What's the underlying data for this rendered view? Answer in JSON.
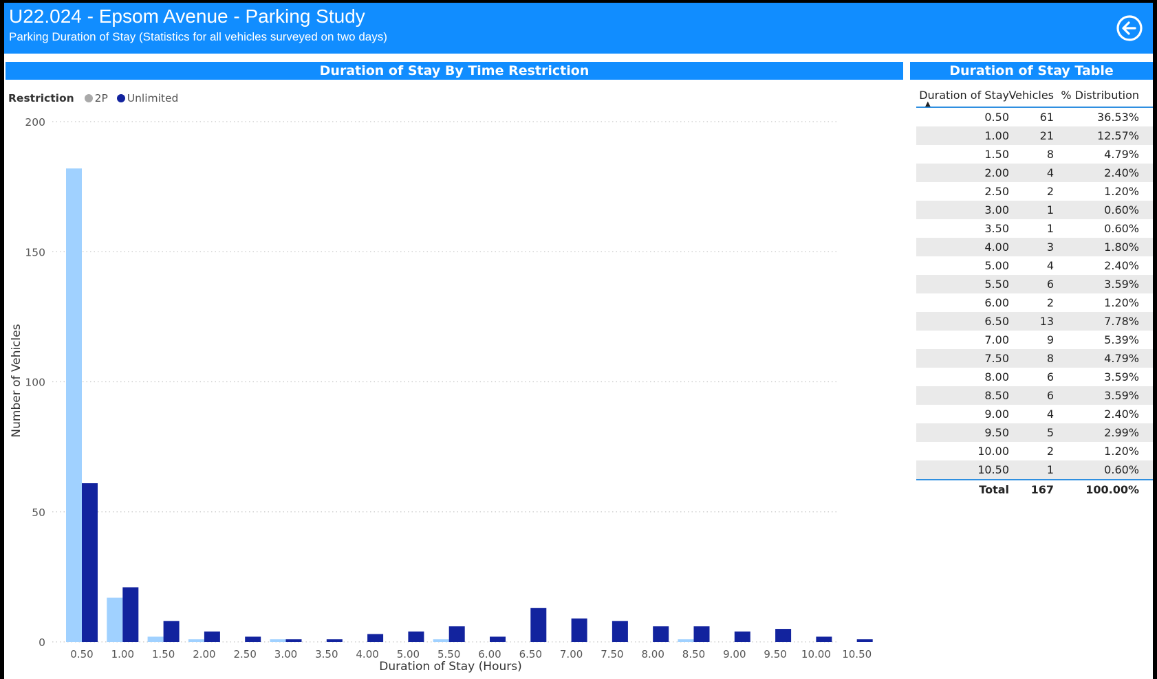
{
  "header": {
    "title": "U22.024 - Epsom Avenue - Parking Study",
    "subtitle": "Parking Duration of Stay (Statistics for all vehicles surveyed on two days)",
    "back_icon": "arrow-left-circle-icon",
    "background": "#118DFF"
  },
  "chart_panel": {
    "title": "Duration of Stay By Time Restriction"
  },
  "legend": {
    "title": "Restriction",
    "items": [
      {
        "label": "2P",
        "color": "#A9A9A9"
      },
      {
        "label": "Unlimited",
        "color": "#12239E"
      }
    ]
  },
  "chart_data": {
    "type": "bar",
    "categories": [
      "0.50",
      "1.00",
      "1.50",
      "2.00",
      "2.50",
      "3.00",
      "3.50",
      "4.00",
      "5.00",
      "5.50",
      "6.00",
      "6.50",
      "7.00",
      "7.50",
      "8.00",
      "8.50",
      "9.00",
      "9.50",
      "10.00",
      "10.50"
    ],
    "series": [
      {
        "name": "2P",
        "color": "#A0D1FF",
        "values": [
          182,
          17,
          2,
          1,
          0,
          1,
          0,
          0,
          0,
          1,
          0,
          0,
          0,
          0,
          0,
          1,
          0,
          0,
          0,
          0
        ]
      },
      {
        "name": "Unlimited",
        "color": "#12239E",
        "values": [
          61,
          21,
          8,
          4,
          2,
          1,
          1,
          3,
          4,
          6,
          2,
          13,
          9,
          8,
          6,
          6,
          4,
          5,
          2,
          1
        ]
      }
    ],
    "xlabel": "Duration of Stay (Hours)",
    "ylabel": "Number of Vehicles",
    "yticks": [
      0,
      50,
      100,
      150,
      200
    ],
    "ylim": [
      0,
      200
    ],
    "grid": true,
    "legend_position": "top-left"
  },
  "table": {
    "title": "Duration of Stay Table",
    "columns": [
      "Duration of Stay",
      "Vehicles",
      "% Distribution"
    ],
    "rows": [
      [
        "0.50",
        "61",
        "36.53%"
      ],
      [
        "1.00",
        "21",
        "12.57%"
      ],
      [
        "1.50",
        "8",
        "4.79%"
      ],
      [
        "2.00",
        "4",
        "2.40%"
      ],
      [
        "2.50",
        "2",
        "1.20%"
      ],
      [
        "3.00",
        "1",
        "0.60%"
      ],
      [
        "3.50",
        "1",
        "0.60%"
      ],
      [
        "4.00",
        "3",
        "1.80%"
      ],
      [
        "5.00",
        "4",
        "2.40%"
      ],
      [
        "5.50",
        "6",
        "3.59%"
      ],
      [
        "6.00",
        "2",
        "1.20%"
      ],
      [
        "6.50",
        "13",
        "7.78%"
      ],
      [
        "7.00",
        "9",
        "5.39%"
      ],
      [
        "7.50",
        "8",
        "4.79%"
      ],
      [
        "8.00",
        "6",
        "3.59%"
      ],
      [
        "8.50",
        "6",
        "3.59%"
      ],
      [
        "9.00",
        "4",
        "2.40%"
      ],
      [
        "9.50",
        "5",
        "2.99%"
      ],
      [
        "10.00",
        "2",
        "1.20%"
      ],
      [
        "10.50",
        "1",
        "0.60%"
      ]
    ],
    "total": [
      "Total",
      "167",
      "100.00%"
    ]
  }
}
